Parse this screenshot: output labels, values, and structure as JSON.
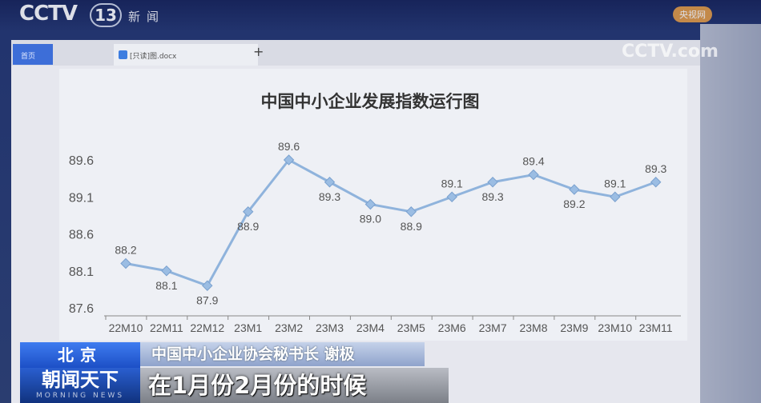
{
  "broadcast": {
    "channel_logo": "CCTV",
    "channel_number": "13",
    "channel_sub": "新闻",
    "watermark": "CCTV.com",
    "watermark_badge": "央视网",
    "location": "北京",
    "speaker": "中国中小企业协会秘书长 谢极",
    "program": "朝闻天下",
    "program_en": "MORNING NEWS",
    "caption": "在1月份2月份的时候"
  },
  "window": {
    "tabs": [
      {
        "label": "首页"
      },
      {
        "label": "[只读]图.docx"
      }
    ],
    "new_tab": "+"
  },
  "chart_data": {
    "type": "line",
    "title": "中国中小企业发展指数运行图",
    "categories": [
      "22M10",
      "22M11",
      "22M12",
      "23M1",
      "23M2",
      "23M3",
      "23M4",
      "23M5",
      "23M6",
      "23M7",
      "23M8",
      "23M9",
      "23M10",
      "23M11"
    ],
    "values": [
      88.2,
      88.1,
      87.9,
      88.9,
      89.6,
      89.3,
      89.0,
      88.9,
      89.1,
      89.3,
      89.4,
      89.2,
      89.1,
      89.3
    ],
    "yticks": [
      "87.6",
      "88.1",
      "88.6",
      "89.1",
      "89.6"
    ],
    "ylim": [
      87.6,
      89.6
    ],
    "xlabel": "",
    "ylabel": "",
    "grid": false,
    "color": "#8fb3dc"
  }
}
